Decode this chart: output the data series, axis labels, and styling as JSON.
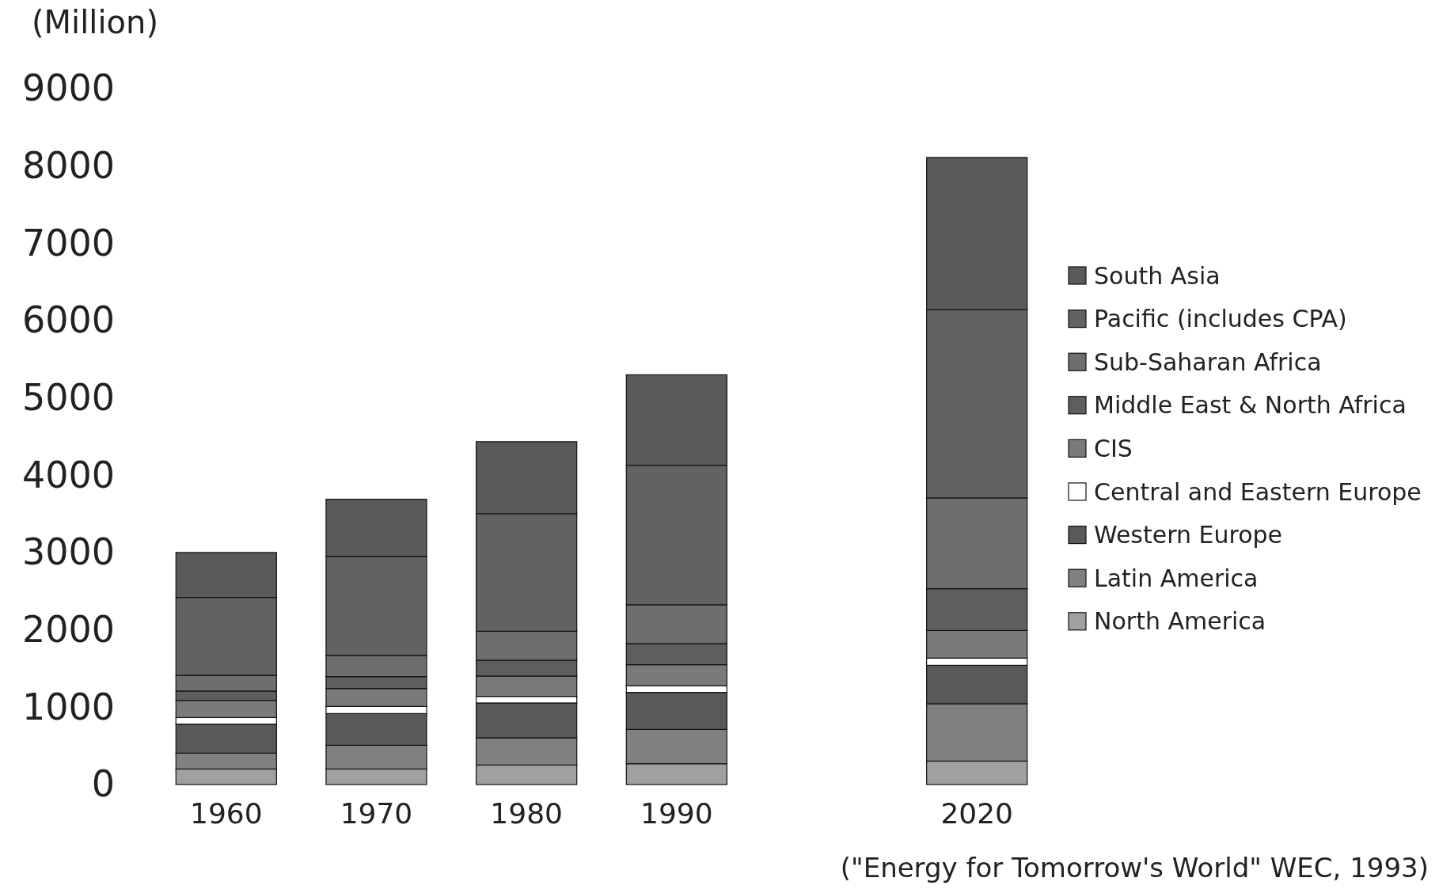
{
  "chart_data": {
    "type": "bar",
    "stacked": true,
    "ylabel": "(Million)",
    "categories": [
      "1960",
      "1970",
      "1980",
      "1990",
      null,
      "2020"
    ],
    "series": [
      {
        "name": "North America",
        "color": "#a0a0a0",
        "values": [
          201,
          201,
          252,
          269,
          null,
          303
        ]
      },
      {
        "name": "Latin America",
        "color": "#808080",
        "values": [
          205,
          307,
          352,
          444,
          null,
          742
        ]
      },
      {
        "name": "Western Europe",
        "color": "#595959",
        "values": [
          375,
          410,
          451,
          478,
          null,
          497
        ]
      },
      {
        "name": "Central and Eastern Europe",
        "color": "#ffffff",
        "values": [
          85,
          92,
          85,
          85,
          null,
          93
        ]
      },
      {
        "name": "CIS",
        "color": "#7a7a7a",
        "values": [
          223,
          232,
          263,
          274,
          null,
          358
        ]
      },
      {
        "name": "Middle East & North Africa",
        "color": "#5e5e5e",
        "values": [
          120,
          154,
          205,
          273,
          null,
          540
        ]
      },
      {
        "name": "Sub-Saharan Africa",
        "color": "#6e6e6e",
        "values": [
          204,
          273,
          375,
          502,
          null,
          1174
        ]
      },
      {
        "name": "Pacific (includes CPA)",
        "color": "#626262",
        "values": [
          1007,
          1281,
          1520,
          1805,
          null,
          2433
        ]
      },
      {
        "name": "South Asia",
        "color": "#5a5a5a",
        "values": [
          581,
          740,
          932,
          1169,
          null,
          1970
        ]
      }
    ],
    "ylim": [
      0,
      9000
    ],
    "yticks": [
      0,
      1000,
      2000,
      3000,
      4000,
      5000,
      6000,
      7000,
      8000,
      9000
    ],
    "legend": "right",
    "annotations": [
      "(\"Energy for Tomorrow's World\" WEC, 1993)"
    ]
  }
}
